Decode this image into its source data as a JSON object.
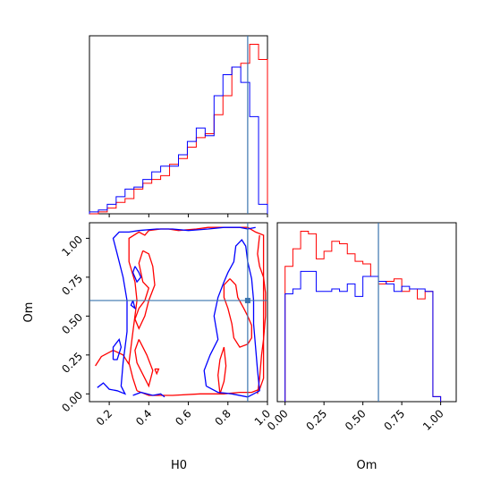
{
  "chart_data": {
    "type": "corner",
    "truth": {
      "H0": 0.9,
      "Om": 0.6
    },
    "truth_color": "#3b75af",
    "series": [
      {
        "color": "#ff0000"
      },
      {
        "color": "#0000ff"
      }
    ],
    "panels": {
      "hist_H0": {
        "type": "histogram",
        "xlim": [
          0.1,
          1.0
        ],
        "bin_edges": [
          0.1,
          0.145,
          0.19,
          0.235,
          0.28,
          0.325,
          0.37,
          0.415,
          0.46,
          0.505,
          0.55,
          0.595,
          0.64,
          0.685,
          0.73,
          0.775,
          0.82,
          0.865,
          0.91,
          0.955,
          1.0
        ],
        "red_counts": [
          0,
          1,
          3,
          6,
          8,
          13,
          16,
          18,
          20,
          26,
          29,
          35,
          40,
          42,
          52,
          62,
          77,
          79,
          89,
          81
        ],
        "blue_counts": [
          1,
          2,
          5,
          9,
          13,
          14,
          18,
          22,
          25,
          25,
          31,
          38,
          45,
          41,
          62,
          73,
          77,
          69,
          51,
          5
        ],
        "x_ticks": [
          0.2,
          0.4,
          0.6,
          0.8,
          1.0
        ]
      },
      "hist_Om": {
        "type": "histogram",
        "xlim": [
          -0.05,
          1.1
        ],
        "bin_edges": [
          0.0,
          0.05,
          0.1,
          0.15,
          0.2,
          0.25,
          0.3,
          0.35,
          0.4,
          0.45,
          0.5,
          0.55,
          0.6,
          0.65,
          0.7,
          0.75,
          0.8,
          0.85,
          0.9,
          0.95,
          1.0
        ],
        "red_counts": [
          54,
          61,
          68,
          67,
          57,
          60,
          64,
          63,
          59,
          56,
          55,
          50,
          47,
          48,
          49,
          44,
          45,
          41,
          44,
          2
        ],
        "blue_counts": [
          43,
          45,
          52,
          52,
          44,
          44,
          45,
          44,
          47,
          42,
          50,
          50,
          48,
          47,
          44,
          46,
          45,
          45,
          44,
          2
        ],
        "x_ticks": [
          0.0,
          0.25,
          0.5,
          0.75,
          1.0
        ],
        "x_tick_labels": [
          "0.00",
          "0.25",
          "0.50",
          "0.75",
          "1.00"
        ]
      },
      "contour": {
        "type": "contour",
        "xlim": [
          0.1,
          1.0
        ],
        "ylim": [
          -0.05,
          1.1
        ],
        "x_ticks": [
          0.2,
          0.4,
          0.6,
          0.8,
          1.0
        ],
        "y_ticks": [
          0.0,
          0.25,
          0.5,
          0.75,
          1.0
        ],
        "y_tick_labels": [
          "0.00",
          "0.25",
          "0.50",
          "0.75",
          "1.00"
        ],
        "red_contours": [
          [
            [
              0.34,
              0.02
            ],
            [
              0.4,
              -0.01
            ],
            [
              0.52,
              -0.01
            ],
            [
              0.66,
              0.0
            ],
            [
              0.78,
              0.0
            ],
            [
              0.86,
              0.01
            ],
            [
              0.92,
              0.01
            ],
            [
              0.96,
              0.03
            ],
            [
              0.98,
              0.1
            ],
            [
              0.98,
              0.3
            ],
            [
              0.98,
              0.6
            ],
            [
              0.98,
              0.86
            ],
            [
              0.98,
              1.02
            ],
            [
              0.94,
              1.04
            ],
            [
              0.9,
              1.07
            ],
            [
              0.8,
              1.07
            ],
            [
              0.7,
              1.07
            ],
            [
              0.64,
              1.06
            ],
            [
              0.55,
              1.05
            ],
            [
              0.5,
              1.06
            ],
            [
              0.46,
              1.06
            ],
            [
              0.4,
              1.05
            ],
            [
              0.38,
              1.02
            ],
            [
              0.35,
              1.04
            ],
            [
              0.3,
              1.0
            ],
            [
              0.3,
              0.85
            ],
            [
              0.33,
              0.72
            ],
            [
              0.34,
              0.6
            ],
            [
              0.32,
              0.4
            ],
            [
              0.3,
              0.2
            ],
            [
              0.32,
              0.1
            ],
            [
              0.34,
              0.02
            ]
          ],
          [
            [
              0.35,
              0.35
            ],
            [
              0.37,
              0.3
            ],
            [
              0.39,
              0.25
            ],
            [
              0.42,
              0.15
            ],
            [
              0.4,
              0.05
            ],
            [
              0.38,
              0.1
            ],
            [
              0.34,
              0.2
            ],
            [
              0.33,
              0.28
            ],
            [
              0.35,
              0.35
            ]
          ],
          [
            [
              0.37,
              0.92
            ],
            [
              0.35,
              0.84
            ],
            [
              0.37,
              0.72
            ],
            [
              0.4,
              0.68
            ],
            [
              0.38,
              0.6
            ],
            [
              0.35,
              0.55
            ],
            [
              0.33,
              0.48
            ],
            [
              0.35,
              0.42
            ],
            [
              0.38,
              0.5
            ],
            [
              0.4,
              0.6
            ],
            [
              0.43,
              0.7
            ],
            [
              0.42,
              0.82
            ],
            [
              0.4,
              0.9
            ],
            [
              0.37,
              0.92
            ]
          ],
          [
            [
              0.81,
              0.74
            ],
            [
              0.84,
              0.7
            ],
            [
              0.85,
              0.62
            ],
            [
              0.88,
              0.55
            ],
            [
              0.9,
              0.5
            ],
            [
              0.92,
              0.44
            ],
            [
              0.92,
              0.36
            ],
            [
              0.9,
              0.32
            ],
            [
              0.86,
              0.3
            ],
            [
              0.83,
              0.36
            ],
            [
              0.82,
              0.45
            ],
            [
              0.8,
              0.55
            ],
            [
              0.78,
              0.62
            ],
            [
              0.78,
              0.7
            ],
            [
              0.81,
              0.74
            ]
          ],
          [
            [
              0.43,
              0.16
            ],
            [
              0.44,
              0.13
            ],
            [
              0.45,
              0.16
            ],
            [
              0.43,
              0.16
            ]
          ],
          [
            [
              0.76,
              0.0
            ],
            [
              0.78,
              0.08
            ],
            [
              0.79,
              0.18
            ],
            [
              0.78,
              0.3
            ],
            [
              0.76,
              0.22
            ],
            [
              0.75,
              0.12
            ],
            [
              0.76,
              0.0
            ]
          ],
          [
            [
              0.95,
              0.0
            ],
            [
              0.96,
              0.1
            ],
            [
              0.97,
              0.25
            ],
            [
              0.98,
              0.35
            ],
            [
              0.99,
              0.5
            ],
            [
              0.99,
              0.65
            ],
            [
              0.98,
              0.75
            ],
            [
              0.96,
              0.82
            ],
            [
              0.95,
              0.9
            ],
            [
              0.96,
              1.02
            ]
          ],
          [
            [
              0.13,
              0.18
            ],
            [
              0.16,
              0.24
            ],
            [
              0.22,
              0.28
            ],
            [
              0.27,
              0.25
            ],
            [
              0.3,
              0.19
            ]
          ]
        ],
        "blue_contours": [
          [
            [
              0.14,
              0.04
            ],
            [
              0.17,
              0.07
            ],
            [
              0.2,
              0.03
            ],
            [
              0.24,
              0.02
            ],
            [
              0.28,
              0.0
            ],
            [
              0.26,
              0.05
            ],
            [
              0.27,
              0.2
            ],
            [
              0.29,
              0.4
            ],
            [
              0.29,
              0.6
            ],
            [
              0.27,
              0.75
            ],
            [
              0.24,
              0.9
            ],
            [
              0.22,
              1.0
            ],
            [
              0.25,
              1.04
            ],
            [
              0.3,
              1.04
            ],
            [
              0.35,
              1.05
            ],
            [
              0.44,
              1.06
            ],
            [
              0.52,
              1.06
            ],
            [
              0.6,
              1.05
            ],
            [
              0.7,
              1.06
            ],
            [
              0.78,
              1.07
            ],
            [
              0.86,
              1.07
            ],
            [
              0.9,
              1.06
            ],
            [
              0.94,
              1.07
            ]
          ],
          [
            [
              0.32,
              -0.01
            ],
            [
              0.36,
              0.01
            ],
            [
              0.42,
              -0.01
            ],
            [
              0.46,
              0.0
            ],
            [
              0.48,
              -0.02
            ]
          ],
          [
            [
              0.32,
              0.6
            ],
            [
              0.33,
              0.55
            ],
            [
              0.31,
              0.57
            ],
            [
              0.32,
              0.6
            ]
          ],
          [
            [
              0.33,
              0.82
            ],
            [
              0.35,
              0.78
            ],
            [
              0.36,
              0.75
            ],
            [
              0.34,
              0.72
            ],
            [
              0.32,
              0.78
            ],
            [
              0.33,
              0.82
            ]
          ],
          [
            [
              0.69,
              0.05
            ],
            [
              0.68,
              0.15
            ],
            [
              0.71,
              0.25
            ],
            [
              0.75,
              0.35
            ],
            [
              0.73,
              0.5
            ],
            [
              0.75,
              0.62
            ],
            [
              0.78,
              0.72
            ],
            [
              0.8,
              0.78
            ],
            [
              0.83,
              0.85
            ],
            [
              0.84,
              0.95
            ],
            [
              0.87,
              0.99
            ],
            [
              0.89,
              0.95
            ],
            [
              0.9,
              0.85
            ],
            [
              0.92,
              0.74
            ],
            [
              0.93,
              0.6
            ],
            [
              0.93,
              0.45
            ],
            [
              0.94,
              0.3
            ],
            [
              0.95,
              0.15
            ],
            [
              0.96,
              0.02
            ],
            [
              0.9,
              -0.02
            ],
            [
              0.82,
              0.0
            ],
            [
              0.75,
              0.01
            ],
            [
              0.69,
              0.05
            ]
          ],
          [
            [
              0.22,
              0.22
            ],
            [
              0.22,
              0.3
            ],
            [
              0.25,
              0.35
            ],
            [
              0.26,
              0.3
            ],
            [
              0.24,
              0.22
            ],
            [
              0.22,
              0.22
            ]
          ]
        ]
      }
    },
    "labels": {
      "x_bottom_left": "H0",
      "x_bottom_right": "Om",
      "y_left": "Om"
    }
  }
}
